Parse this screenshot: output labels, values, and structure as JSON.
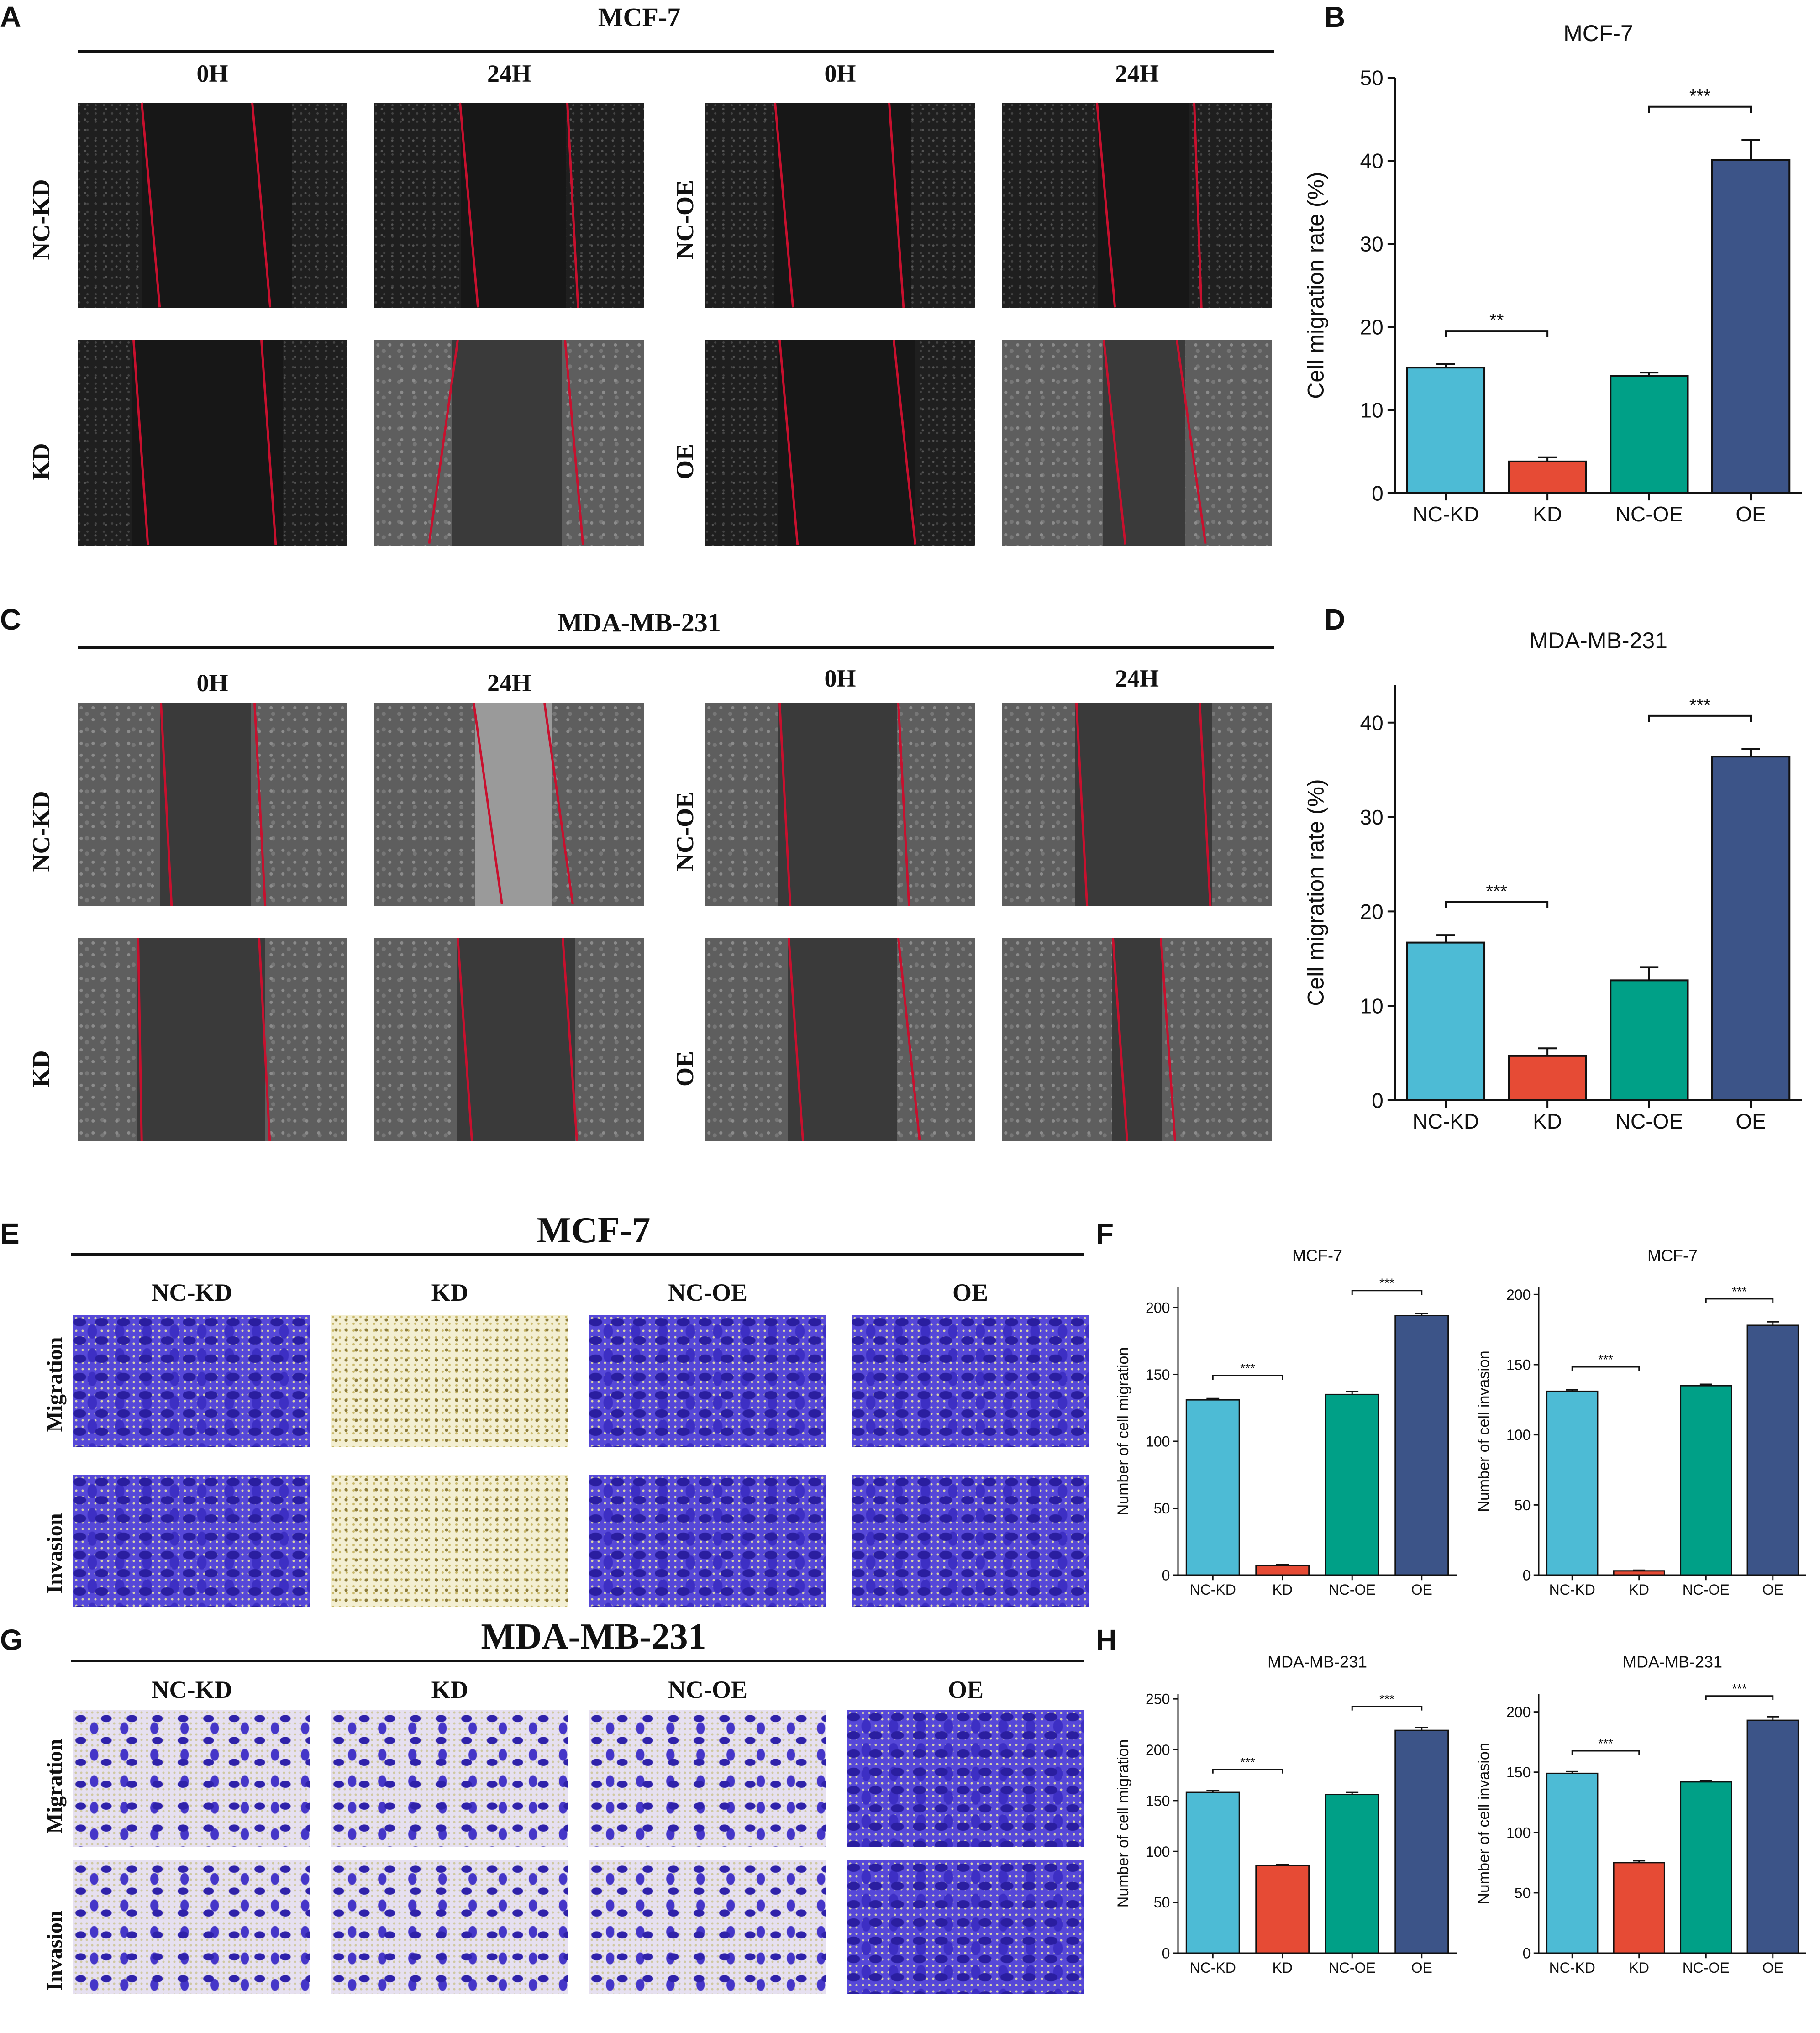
{
  "panels": {
    "A": {
      "letter": "A",
      "title": "MCF-7",
      "cols": [
        "0H",
        "24H",
        "0H",
        "24H"
      ],
      "rows_left": [
        "NC-KD",
        "KD"
      ],
      "rows_right": [
        "NC-OE",
        "OE"
      ]
    },
    "C": {
      "letter": "C",
      "title": "MDA-MB-231",
      "cols": [
        "0H",
        "24H",
        "0H",
        "24H"
      ],
      "rows_left": [
        "NC-KD",
        "KD"
      ],
      "rows_right": [
        "NC-OE",
        "OE"
      ]
    },
    "E": {
      "letter": "E",
      "title": "MCF-7",
      "cols": [
        "NC-KD",
        "KD",
        "NC-OE",
        "OE"
      ],
      "rows": [
        "Migration",
        "Invasion"
      ]
    },
    "G": {
      "letter": "G",
      "title": "MDA-MB-231",
      "cols": [
        "NC-KD",
        "KD",
        "NC-OE",
        "OE"
      ],
      "rows": [
        "Migration",
        "Invasion"
      ]
    },
    "B": {
      "letter": "B"
    },
    "D": {
      "letter": "D"
    },
    "F": {
      "letter": "F"
    },
    "H": {
      "letter": "H"
    }
  },
  "colors": {
    "NC-KD": "#4dbbd5",
    "KD": "#e64b35",
    "NC-OE": "#00a087",
    "OE": "#3c5488"
  },
  "chart_data": [
    {
      "id": "B",
      "type": "bar",
      "title": "MCF-7",
      "ylabel": "Cell migration rate (%)",
      "categories": [
        "NC-KD",
        "KD",
        "NC-OE",
        "OE"
      ],
      "values": [
        15.1,
        3.8,
        14.1,
        40.1
      ],
      "errors": [
        0.4,
        0.5,
        0.4,
        2.4
      ],
      "ylim": [
        0,
        50
      ],
      "yticks": [
        0,
        10,
        20,
        30,
        40,
        50
      ],
      "significance": [
        {
          "pair": [
            "NC-KD",
            "KD"
          ],
          "label": "**"
        },
        {
          "pair": [
            "NC-OE",
            "OE"
          ],
          "label": "***"
        }
      ]
    },
    {
      "id": "D",
      "type": "bar",
      "title": "MDA-MB-231",
      "ylabel": "Cell migration rate (%)",
      "categories": [
        "NC-KD",
        "KD",
        "NC-OE",
        "OE"
      ],
      "values": [
        16.7,
        4.7,
        12.7,
        36.4
      ],
      "errors": [
        0.8,
        0.8,
        1.4,
        0.8
      ],
      "ylim": [
        0,
        44
      ],
      "yticks": [
        0,
        10,
        20,
        30,
        40
      ],
      "significance": [
        {
          "pair": [
            "NC-KD",
            "KD"
          ],
          "label": "***"
        },
        {
          "pair": [
            "NC-OE",
            "OE"
          ],
          "label": "***"
        }
      ]
    },
    {
      "id": "F1",
      "type": "bar",
      "title": "MCF-7",
      "ylabel": "Number of cell migration",
      "categories": [
        "NC-KD",
        "KD",
        "NC-OE",
        "OE"
      ],
      "values": [
        131,
        7,
        135,
        194
      ],
      "errors": [
        1,
        1,
        2,
        1.5
      ],
      "ylim": [
        0,
        215
      ],
      "yticks": [
        0,
        50,
        100,
        150,
        200
      ],
      "significance": [
        {
          "pair": [
            "NC-KD",
            "KD"
          ],
          "label": "***"
        },
        {
          "pair": [
            "NC-OE",
            "OE"
          ],
          "label": "***"
        }
      ]
    },
    {
      "id": "F2",
      "type": "bar",
      "title": "MCF-7",
      "ylabel": "Number of cell invasion",
      "categories": [
        "NC-KD",
        "KD",
        "NC-OE",
        "OE"
      ],
      "values": [
        131,
        3,
        135,
        178
      ],
      "errors": [
        1,
        0.5,
        1,
        2.5
      ],
      "ylim": [
        0,
        205
      ],
      "yticks": [
        0,
        50,
        100,
        150,
        200
      ],
      "significance": [
        {
          "pair": [
            "NC-KD",
            "KD"
          ],
          "label": "***"
        },
        {
          "pair": [
            "NC-OE",
            "OE"
          ],
          "label": "***"
        }
      ]
    },
    {
      "id": "H1",
      "type": "bar",
      "title": "MDA-MB-231",
      "ylabel": "Number of cell migration",
      "categories": [
        "NC-KD",
        "KD",
        "NC-OE",
        "OE"
      ],
      "values": [
        158,
        86,
        156,
        219
      ],
      "errors": [
        2,
        1,
        2,
        3
      ],
      "ylim": [
        0,
        255
      ],
      "yticks": [
        0,
        50,
        100,
        150,
        200,
        250
      ],
      "significance": [
        {
          "pair": [
            "NC-KD",
            "KD"
          ],
          "label": "***"
        },
        {
          "pair": [
            "NC-OE",
            "OE"
          ],
          "label": "***"
        }
      ]
    },
    {
      "id": "H2",
      "type": "bar",
      "title": "MDA-MB-231",
      "ylabel": "Number of cell invasion",
      "categories": [
        "NC-KD",
        "KD",
        "NC-OE",
        "OE"
      ],
      "values": [
        149,
        75,
        142,
        193
      ],
      "errors": [
        1.5,
        1.5,
        1,
        3
      ],
      "ylim": [
        0,
        215
      ],
      "yticks": [
        0,
        50,
        100,
        150,
        200
      ],
      "significance": [
        {
          "pair": [
            "NC-KD",
            "KD"
          ],
          "label": "***"
        },
        {
          "pair": [
            "NC-OE",
            "OE"
          ],
          "label": "***"
        }
      ]
    }
  ]
}
